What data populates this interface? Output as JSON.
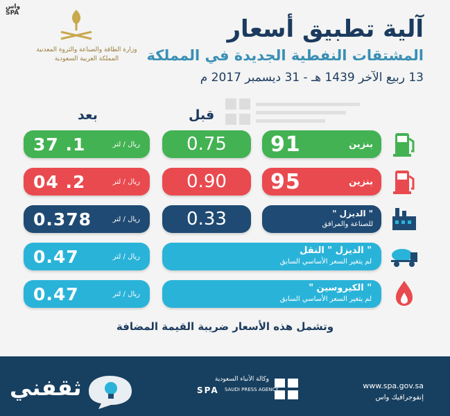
{
  "corner": {
    "line1": "واس",
    "line2": "SPA"
  },
  "ministry": {
    "line1": "وزارة الطاقة والصناعة والثروة المعدنية",
    "line2": "المملكة العربية السعودية"
  },
  "header": {
    "title": "آلية تطبيق أسعار",
    "subtitle": "المشتقات النفطية الجديدة في المملكة",
    "date": "13 ربيع الآخر 1439 هـ - 31 ديسمبر 2017 م"
  },
  "columns": {
    "after": "بعد",
    "before": "قبل"
  },
  "rows": [
    {
      "name": "بنزين",
      "grade": "91",
      "before": "0.75",
      "after": "1. 37",
      "unit": "ريال / لتر"
    },
    {
      "name": "بنزين",
      "grade": "95",
      "before": "0.90",
      "after": "2. 04",
      "unit": "ريال / لتر"
    },
    {
      "name": "\" الديزل \"",
      "sub": "للصناعة والمرافق",
      "before": "0.33",
      "after": "0.378",
      "unit": "ريال / لتر"
    },
    {
      "name": "\" الديزل \" النقل",
      "sub": "لم يتغير السعر الأساسي السابق",
      "after": "0.47",
      "unit": "ريال / لتر"
    },
    {
      "name": "\" الكيروسين \"",
      "sub": "لم يتغير السعر الأساسي السابق",
      "after": "0.47",
      "unit": "ريال / لتر"
    }
  ],
  "note": "وتشمل هذه الأسعار ضريبة القيمة المضافة",
  "footer": {
    "site": "www.spa.gov.sa",
    "credit": "إنفوجرافيك واس",
    "agency_ar": "وكالة الأنباء السعودية",
    "agency_en": "SAUDI PRESS AGENCY",
    "agency_mark": "SPA",
    "brand": "ثقفني"
  },
  "colors": {
    "green": "#43b253",
    "red": "#e94a4f",
    "navy": "#1f4a73",
    "cyan": "#2ab3d9",
    "title": "#1b3a5e"
  },
  "icons": [
    "fuel-pump-green-icon",
    "fuel-pump-red-icon",
    "factory-icon",
    "tanker-truck-icon",
    "flame-icon"
  ]
}
